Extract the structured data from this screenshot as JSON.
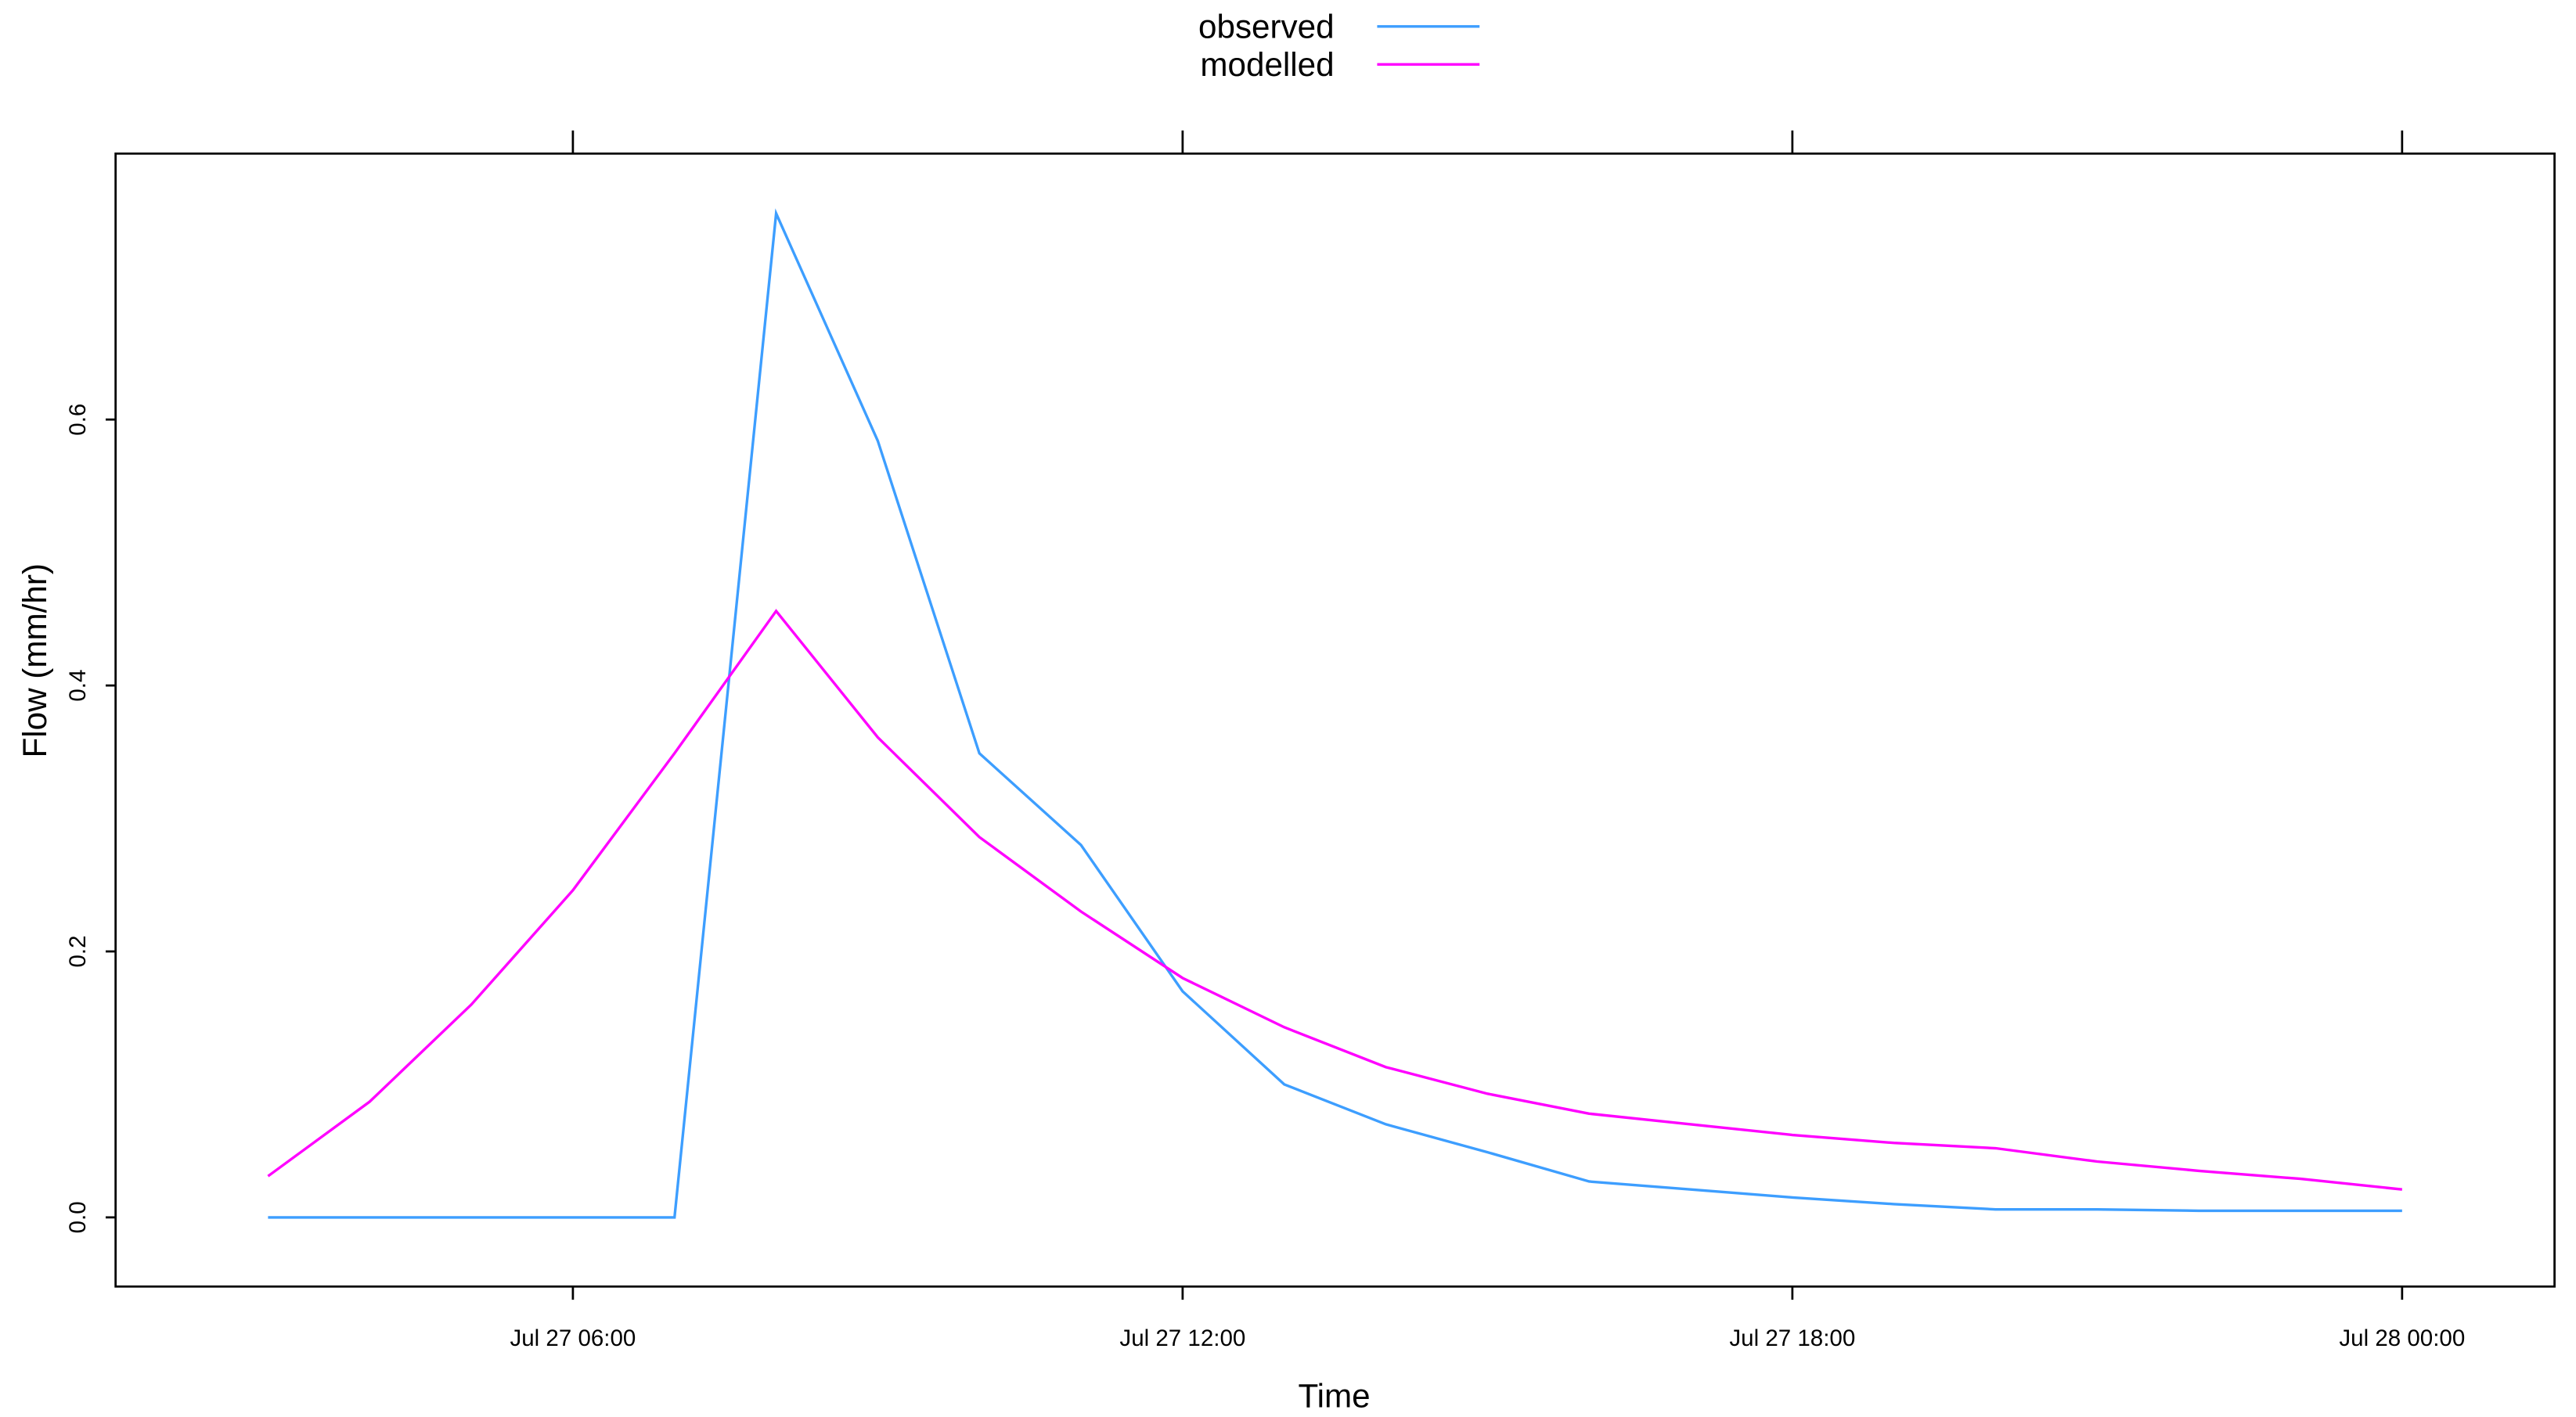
{
  "chart_data": {
    "type": "line",
    "x_label": "Time",
    "y_label": "Flow (mm/hr)",
    "x": [
      "Jul 27 03:00",
      "Jul 27 04:00",
      "Jul 27 05:00",
      "Jul 27 06:00",
      "Jul 27 07:00",
      "Jul 27 08:00",
      "Jul 27 09:00",
      "Jul 27 10:00",
      "Jul 27 11:00",
      "Jul 27 12:00",
      "Jul 27 13:00",
      "Jul 27 14:00",
      "Jul 27 15:00",
      "Jul 27 16:00",
      "Jul 27 17:00",
      "Jul 27 18:00",
      "Jul 27 19:00",
      "Jul 27 20:00",
      "Jul 27 21:00",
      "Jul 27 22:00",
      "Jul 27 23:00",
      "Jul 28 00:00"
    ],
    "series": [
      {
        "name": "observed",
        "color": "#3d9eff",
        "values": [
          0,
          0,
          0,
          0,
          0,
          0.755,
          0.584,
          0.349,
          0.28,
          0.17,
          0.1,
          0.07,
          0.049,
          0.027,
          0.021,
          0.015,
          0.01,
          0.006,
          0.006,
          0.005,
          0.005,
          0.005
        ]
      },
      {
        "name": "modelled",
        "color": "#ff00ff",
        "values": [
          0.031,
          0.087,
          0.16,
          0.246,
          0.349,
          0.456,
          0.361,
          0.286,
          0.23,
          0.18,
          0.143,
          0.113,
          0.093,
          0.078,
          0.07,
          0.062,
          0.056,
          0.052,
          0.042,
          0.035,
          0.029,
          0.021
        ]
      }
    ],
    "xlim": [
      "Jul 27 01:30",
      "Jul 28 01:30"
    ],
    "xticks": [
      "Jul 27 06:00",
      "Jul 27 12:00",
      "Jul 27 18:00",
      "Jul 28 00:00"
    ],
    "ylim": [
      -0.052,
      0.8
    ],
    "yticks": [
      {
        "value": 0,
        "label": "0.0"
      },
      {
        "value": 0.2,
        "label": "0.2"
      },
      {
        "value": 0.4,
        "label": "0.4"
      },
      {
        "value": 0.6,
        "label": "0.6"
      }
    ],
    "legend": "top"
  }
}
